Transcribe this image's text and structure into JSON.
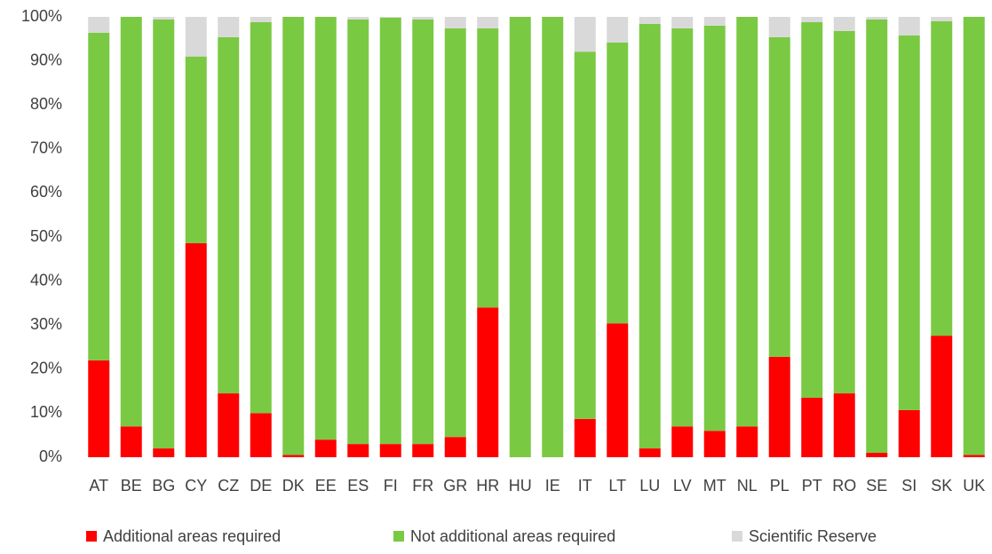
{
  "chart_data": {
    "type": "stacked_bar",
    "categories": [
      "AT",
      "BE",
      "BG",
      "CY",
      "CZ",
      "DE",
      "DK",
      "EE",
      "ES",
      "FI",
      "FR",
      "GR",
      "HR",
      "HU",
      "IE",
      "IT",
      "LT",
      "LU",
      "LV",
      "MT",
      "NL",
      "PL",
      "PT",
      "RO",
      "SE",
      "SI",
      "SK",
      "UK"
    ],
    "series": [
      {
        "name": "Additional areas required",
        "color": "#ff0000",
        "values": [
          22,
          7,
          2,
          48.6,
          14.5,
          10,
          0.5,
          4,
          3,
          3,
          3,
          4.6,
          34,
          0,
          0,
          8.7,
          30.4,
          2,
          7,
          6,
          7,
          22.8,
          13.5,
          14.5,
          1,
          10.7,
          27.6,
          0.5
        ]
      },
      {
        "name": "Not additional areas required",
        "color": "#7ac943",
        "values": [
          74.4,
          93,
          97.4,
          42.4,
          80.9,
          88.8,
          99.5,
          96,
          96.4,
          96.8,
          96.4,
          92.8,
          63.4,
          100,
          100,
          83.4,
          63.8,
          96.4,
          90.4,
          92,
          93,
          72.6,
          85.3,
          82.3,
          98.4,
          85.1,
          71.4,
          99.5
        ]
      },
      {
        "name": "Scientific Reserve",
        "color": "#d9d9d9",
        "values": [
          3.6,
          0,
          0.6,
          9,
          4.6,
          1.2,
          0,
          0,
          0.6,
          0.2,
          0.6,
          2.6,
          2.6,
          0,
          0,
          7.9,
          5.8,
          1.6,
          2.6,
          2,
          0,
          4.6,
          1.2,
          3.2,
          0.6,
          4.2,
          1,
          0
        ]
      }
    ],
    "ylim": [
      0,
      100
    ],
    "yticks": [
      {
        "value": 0,
        "label": "0%"
      },
      {
        "value": 10,
        "label": "10%"
      },
      {
        "value": 20,
        "label": "20%"
      },
      {
        "value": 30,
        "label": "30%"
      },
      {
        "value": 40,
        "label": "40%"
      },
      {
        "value": 50,
        "label": "50%"
      },
      {
        "value": 60,
        "label": "60%"
      },
      {
        "value": 70,
        "label": "70%"
      },
      {
        "value": 80,
        "label": "80%"
      },
      {
        "value": 90,
        "label": "90%"
      },
      {
        "value": 100,
        "label": "100%"
      }
    ],
    "grid": false,
    "legend": "bottom"
  }
}
